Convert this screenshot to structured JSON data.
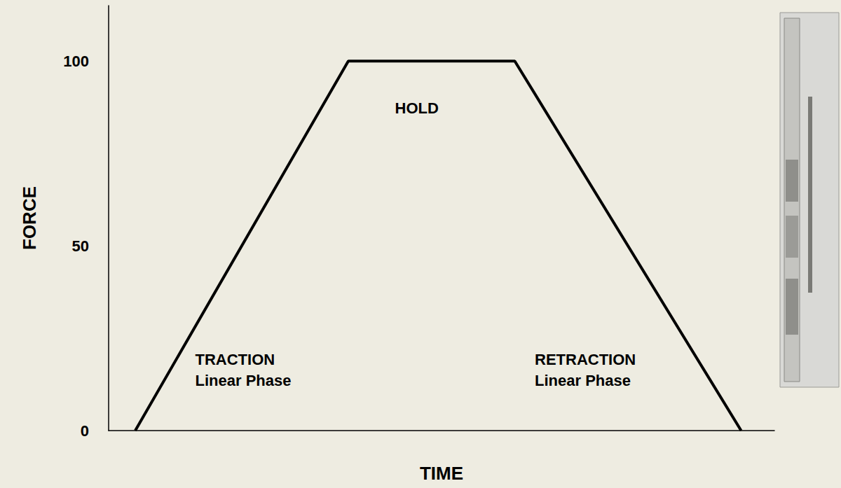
{
  "chart_data": {
    "type": "line",
    "x_label": "TIME",
    "y_label": "FORCE",
    "x": [
      4,
      36,
      61,
      95
    ],
    "values": [
      0,
      100,
      100,
      0
    ],
    "color": "#000000",
    "xlim": [
      0,
      100
    ],
    "ylim": [
      0,
      115
    ],
    "yticks": [
      0,
      50,
      100
    ],
    "tick_labels": "y",
    "grid": false,
    "annotations": [
      {
        "text": "HOLD",
        "x": 43,
        "y": 90
      },
      {
        "text": "TRACTION\nLinear Phase",
        "x": 13,
        "y": 22
      },
      {
        "text": "RETRACTION\nLinear Phase",
        "x": 64,
        "y": 22
      }
    ]
  }
}
